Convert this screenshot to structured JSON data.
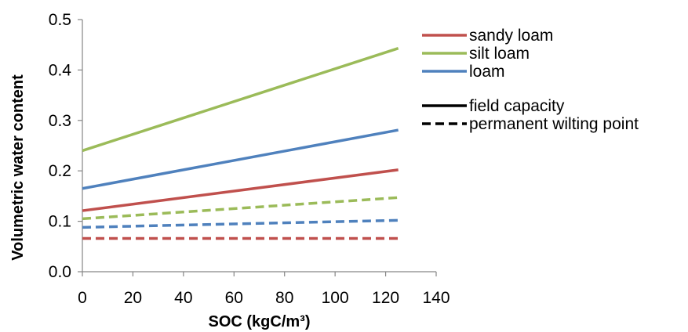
{
  "chart_data": {
    "type": "line",
    "xlabel": "SOC (kgC/m³)",
    "ylabel": "Volumetric water content",
    "xlim": [
      0,
      140
    ],
    "ylim": [
      0,
      0.5
    ],
    "xticks": [
      0,
      20,
      40,
      60,
      80,
      100,
      120,
      140
    ],
    "yticks": [
      0.0,
      0.1,
      0.2,
      0.3,
      0.4,
      0.5
    ],
    "ytick_labels": [
      "0.0",
      "0.1",
      "0.2",
      "0.3",
      "0.4",
      "0.5"
    ],
    "grid": false,
    "legend_position": "right",
    "series": [
      {
        "name": "sandy loam",
        "color": "#c0504d",
        "style": "solid",
        "x": [
          0,
          125
        ],
        "y": [
          0.121,
          0.202
        ]
      },
      {
        "name": "silt loam",
        "color": "#9bbb59",
        "style": "solid",
        "x": [
          0,
          125
        ],
        "y": [
          0.24,
          0.443
        ]
      },
      {
        "name": "loam",
        "color": "#4f81bd",
        "style": "solid",
        "x": [
          0,
          125
        ],
        "y": [
          0.165,
          0.281
        ]
      },
      {
        "color": "#c0504d",
        "style": "dashed",
        "x": [
          0,
          125
        ],
        "y": [
          0.066,
          0.066
        ]
      },
      {
        "color": "#9bbb59",
        "style": "dashed",
        "x": [
          0,
          125
        ],
        "y": [
          0.105,
          0.147
        ]
      },
      {
        "color": "#4f81bd",
        "style": "dashed",
        "x": [
          0,
          125
        ],
        "y": [
          0.088,
          0.102
        ]
      }
    ],
    "legend": {
      "soil_types": [
        {
          "label": "sandy loam",
          "color": "#c0504d"
        },
        {
          "label": "silt loam",
          "color": "#9bbb59"
        },
        {
          "label": "loam",
          "color": "#4f81bd"
        }
      ],
      "line_styles": [
        {
          "label": "field capacity",
          "style": "solid",
          "color": "#000000"
        },
        {
          "label": "permanent wilting point",
          "style": "dashed",
          "color": "#000000"
        }
      ]
    }
  }
}
